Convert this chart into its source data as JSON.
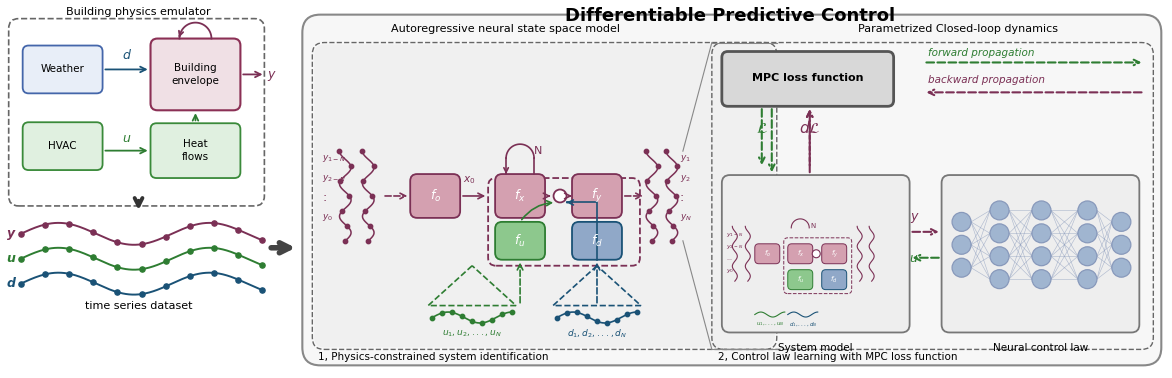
{
  "title": "Differentiable Predictive Control",
  "title_fontsize": 13,
  "background_color": "#ffffff",
  "section1_title": "Building physics emulator",
  "section2_title": "Autoregressive neural state space model",
  "section3_title": "Parametrized Closed-loop dynamics",
  "label1": "1, Physics-constrained system identification",
  "label2": "2, Control law learning with MPC loss function",
  "colors": {
    "red": "#7B3055",
    "green": "#2E7D32",
    "blue": "#1A5276",
    "light_red_box": "#D4A0B0",
    "light_green_box": "#A8D5A2",
    "light_blue_box": "#A8C8E8",
    "dark_red_box": "#C47090",
    "weather_bg": "#E8EEF8",
    "weather_border": "#4466AA",
    "hvac_bg": "#E0F0E0",
    "hvac_border": "#3A8A3A",
    "heat_bg": "#E0F0E0",
    "heat_border": "#3A8A3A",
    "envelope_bg": "#F0E0E5",
    "envelope_border": "#8B3055",
    "dashed_box": "#666666",
    "outer_box": "#888888",
    "gray_bg": "#EFEFEF",
    "nn_node": "#8899BB",
    "nn_node_fill": "#A0B5D0",
    "mpc_box_bg": "#D8D8D8",
    "mpc_box_border": "#555555"
  }
}
